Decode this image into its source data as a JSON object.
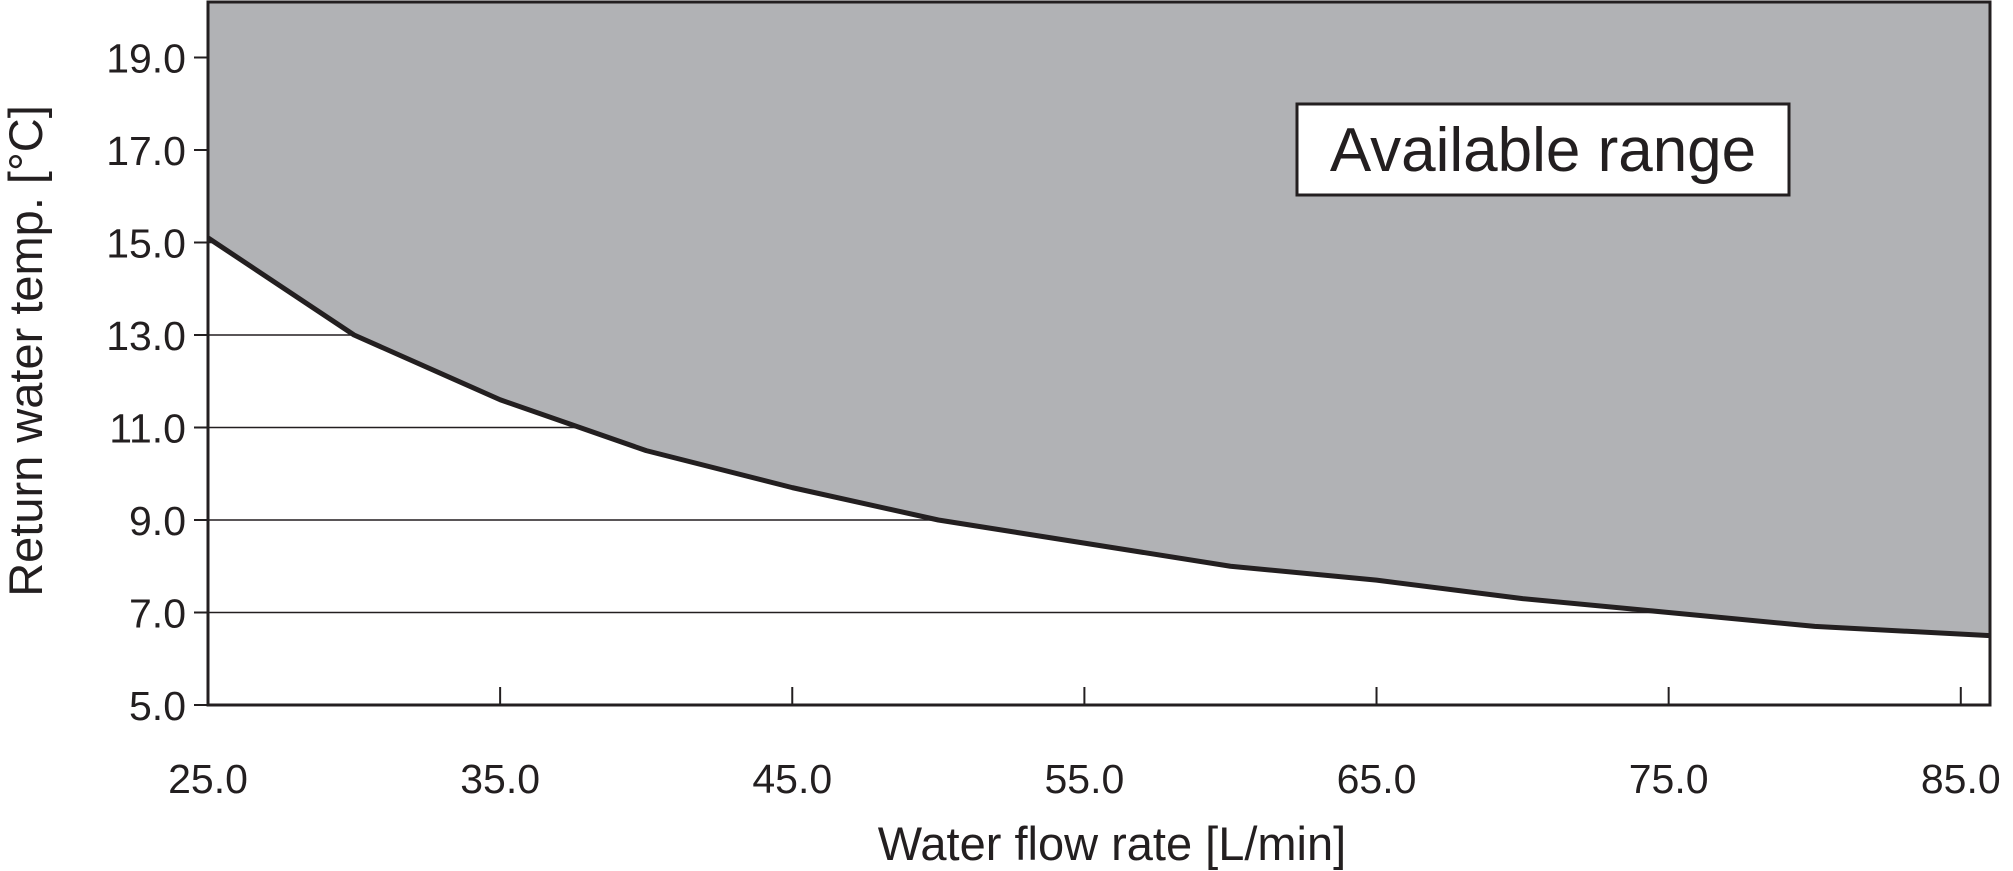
{
  "chart_data": {
    "type": "area",
    "title": "",
    "xlabel": "Water flow rate [L/min]",
    "ylabel": "Return water temp. [°C]",
    "xlim": [
      25.0,
      86.0
    ],
    "ylim": [
      5.0,
      20.2
    ],
    "x_ticks": [
      "25.0",
      "35.0",
      "45.0",
      "55.0",
      "65.0",
      "75.0",
      "85.0"
    ],
    "x_tick_values": [
      25,
      35,
      45,
      55,
      65,
      75,
      85
    ],
    "y_ticks": [
      "5.0",
      "7.0",
      "9.0",
      "11.0",
      "13.0",
      "15.0",
      "17.0",
      "19.0"
    ],
    "y_tick_values": [
      5,
      7,
      9,
      11,
      13,
      15,
      17,
      19
    ],
    "grid": "horizontal",
    "fill_color": "#b1b2b5",
    "line_color": "#231f20",
    "annotation": "Available range",
    "series": [
      {
        "x": [
          25,
          30,
          35,
          40,
          45,
          50,
          55,
          60,
          65,
          70,
          75,
          80,
          86
        ],
        "values": [
          15.1,
          13.0,
          11.6,
          10.5,
          9.7,
          9.0,
          8.5,
          8.0,
          7.7,
          7.3,
          7.0,
          6.7,
          6.5
        ]
      }
    ]
  }
}
